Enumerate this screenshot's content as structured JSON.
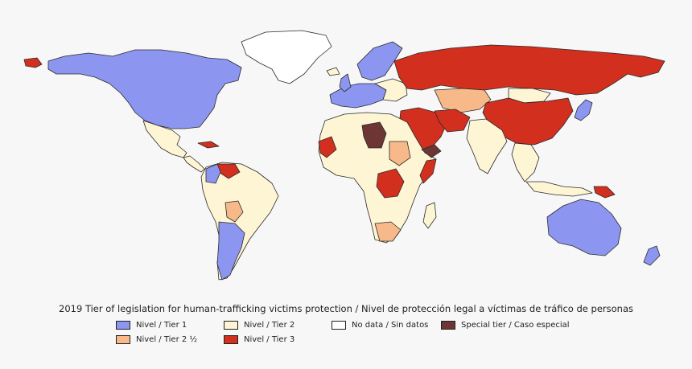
{
  "caption": "2019 Tier of legislation for human-trafficking victims protection / Nivel de protección legal a víctimas de tráfico de personas",
  "colors": {
    "tier1": "#8c96f0",
    "tier2": "#fdf5d3",
    "tier2_5": "#f7b989",
    "tier3": "#d32f1e",
    "nodata": "#ffffff",
    "special": "#6e3535"
  },
  "legend": [
    {
      "label": "Nivel / Tier 1",
      "color": "#8c96f0"
    },
    {
      "label": "Nivel / Tier 2",
      "color": "#fdf5d3"
    },
    {
      "label": "No data / Sin datos",
      "color": "#ffffff"
    },
    {
      "label": "Special tier / Caso especial",
      "color": "#6e3535"
    },
    {
      "label": "Nivel / Tier 2 ½",
      "color": "#f7b989"
    },
    {
      "label": "Nivel / Tier 3",
      "color": "#d32f1e"
    }
  ]
}
